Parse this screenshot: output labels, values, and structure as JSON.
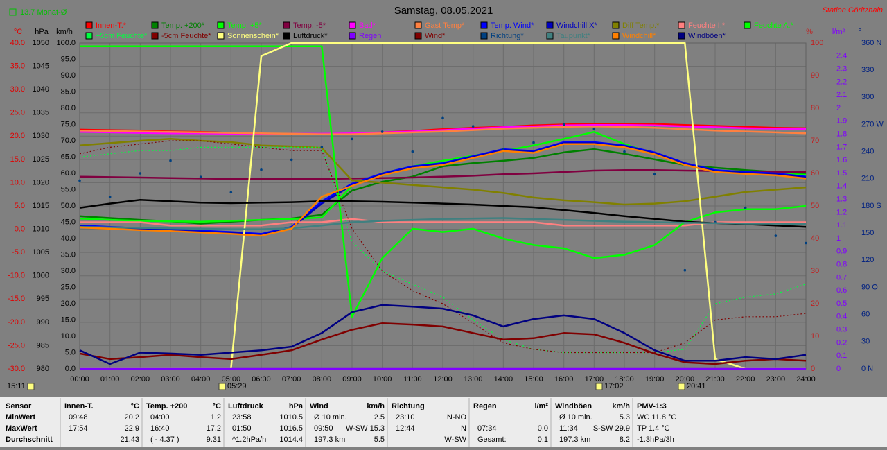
{
  "chart_data": {
    "type": "line",
    "title": "Samstag, 08.05.2021",
    "station": "Station Göritzhain",
    "month_avg": "13.7 Monat-Ø",
    "axis_units": {
      "y": "°C",
      "y2": "hPa",
      "y3": "km/h",
      "y4": "%",
      "y5": "l/m²",
      "y6": "°"
    },
    "markers": [
      "15:11",
      "05:29",
      "17:02",
      "20:41"
    ],
    "x": [
      0,
      1,
      2,
      3,
      4,
      5,
      6,
      7,
      8,
      9,
      10,
      11,
      12,
      13,
      14,
      15,
      16,
      17,
      18,
      19,
      20,
      21,
      22,
      23,
      24
    ],
    "xlim": [
      0,
      24
    ],
    "xticks": [
      {
        "value": 0,
        "label": "00:00"
      },
      {
        "value": 1,
        "label": "01:00"
      },
      {
        "value": 2,
        "label": "02:00"
      },
      {
        "value": 3,
        "label": "03:00"
      },
      {
        "value": 4,
        "label": "04:00"
      },
      {
        "value": 5,
        "label": "05:00"
      },
      {
        "value": 6,
        "label": "06:00"
      },
      {
        "value": 7,
        "label": "07:00"
      },
      {
        "value": 8,
        "label": "08:00"
      },
      {
        "value": 9,
        "label": "09:00"
      },
      {
        "value": 10,
        "label": "10:00"
      },
      {
        "value": 11,
        "label": "11:00"
      },
      {
        "value": 12,
        "label": "12:00"
      },
      {
        "value": 13,
        "label": "13:00"
      },
      {
        "value": 14,
        "label": "14:00"
      },
      {
        "value": 15,
        "label": "15:00"
      },
      {
        "value": 16,
        "label": "16:00"
      },
      {
        "value": 17,
        "label": "17:00"
      },
      {
        "value": 18,
        "label": "18:00"
      },
      {
        "value": 19,
        "label": "19:00"
      },
      {
        "value": 20,
        "label": "20:00"
      },
      {
        "value": 21,
        "label": "21:00"
      },
      {
        "value": 22,
        "label": "22:00"
      },
      {
        "value": 23,
        "label": "23:00"
      },
      {
        "value": 24,
        "label": "24:00"
      }
    ],
    "ylim": [
      -30,
      40
    ],
    "yticks": [
      {
        "value": 40,
        "label": "40.0"
      },
      {
        "value": 35,
        "label": "35.0"
      },
      {
        "value": 30,
        "label": "30.0"
      },
      {
        "value": 25,
        "label": "25.0"
      },
      {
        "value": 20,
        "label": "20.0"
      },
      {
        "value": 15,
        "label": "15.0"
      },
      {
        "value": 10,
        "label": "10.0"
      },
      {
        "value": 5,
        "label": "5.0"
      },
      {
        "value": 0,
        "label": "0.0"
      },
      {
        "value": -5,
        "label": "-5.0"
      },
      {
        "value": -10,
        "label": "-10.0"
      },
      {
        "value": -15,
        "label": "-15.0"
      },
      {
        "value": -20,
        "label": "-20.0"
      },
      {
        "value": -25,
        "label": "-25.0"
      },
      {
        "value": -30,
        "label": "-30.0"
      }
    ],
    "y2lim": [
      980,
      1050
    ],
    "y2ticks": [
      1050,
      1045,
      1040,
      1035,
      1030,
      1025,
      1020,
      1015,
      1010,
      1005,
      1000,
      995,
      990,
      985,
      980
    ],
    "y3lim": [
      0,
      100
    ],
    "y3ticks": [
      {
        "value": 100,
        "label": "100.0"
      },
      {
        "value": 95,
        "label": "95.0"
      },
      {
        "value": 90,
        "label": "90.0"
      },
      {
        "value": 85,
        "label": "85.0"
      },
      {
        "value": 80,
        "label": "80.0"
      },
      {
        "value": 75,
        "label": "75.0"
      },
      {
        "value": 70,
        "label": "70.0"
      },
      {
        "value": 65,
        "label": "65.0"
      },
      {
        "value": 60,
        "label": "60.0"
      },
      {
        "value": 55,
        "label": "55.0"
      },
      {
        "value": 50,
        "label": "50.0"
      },
      {
        "value": 45,
        "label": "45.0"
      },
      {
        "value": 40,
        "label": "40.0"
      },
      {
        "value": 35,
        "label": "35.0"
      },
      {
        "value": 30,
        "label": "30.0"
      },
      {
        "value": 25,
        "label": "25.0"
      },
      {
        "value": 20,
        "label": "20.0"
      },
      {
        "value": 15,
        "label": "15.0"
      },
      {
        "value": 10,
        "label": "10.0"
      },
      {
        "value": 5,
        "label": "5.0"
      },
      {
        "value": 0,
        "label": "0.0"
      }
    ],
    "y4lim": [
      0,
      100
    ],
    "y4ticks": [
      100,
      90,
      80,
      70,
      60,
      50,
      40,
      30,
      20,
      10,
      0
    ],
    "y5lim": [
      0,
      2.5
    ],
    "y5ticks": [
      0,
      0.1,
      0.2,
      0.3,
      0.4,
      0.5,
      0.6,
      0.7,
      0.8,
      0.9,
      1.0,
      1.1,
      1.2,
      1.3,
      1.4,
      1.5,
      1.6,
      1.7,
      1.8,
      1.9,
      2.0,
      2.1,
      2.2,
      2.3,
      2.4
    ],
    "y6lim": [
      0,
      360
    ],
    "y6ticks": [
      {
        "value": 360,
        "label": "360 N"
      },
      330,
      300,
      {
        "value": 270,
        "label": "270 W"
      },
      240,
      210,
      {
        "value": 180,
        "label": "180 S"
      },
      150,
      120,
      {
        "value": 90,
        "label": "90 O"
      },
      60,
      30,
      {
        "value": 0,
        "label": "0 N"
      }
    ],
    "grid": true,
    "series": [
      {
        "name": "Innen-T.*",
        "color": "#ff0000",
        "axis": "y",
        "values": [
          21.4,
          21.3,
          21.2,
          21.0,
          20.9,
          20.7,
          20.5,
          20.4,
          20.4,
          20.5,
          20.8,
          21.1,
          21.5,
          21.8,
          22.0,
          22.3,
          22.5,
          22.7,
          22.7,
          22.6,
          22.4,
          22.2,
          22.0,
          21.8,
          21.7
        ]
      },
      {
        "name": "Temp. +200*",
        "color": "#008000",
        "axis": "y",
        "values": [
          2.8,
          2.4,
          2.0,
          1.7,
          1.2,
          1.6,
          2.0,
          2.3,
          3.1,
          8.3,
          10.2,
          11.3,
          13.5,
          14.2,
          14.7,
          15.3,
          16.5,
          17.2,
          16.2,
          15.0,
          13.8,
          13.2,
          12.7,
          12.3,
          12.0
        ]
      },
      {
        "name": "Temp. +5*",
        "color": "#00ff00",
        "axis": "y",
        "values": [
          2.3,
          2.0,
          1.8,
          1.7,
          1.6,
          1.8,
          2.0,
          2.2,
          2.5,
          9.3,
          12.0,
          13.5,
          14.7,
          15.8,
          16.8,
          18.0,
          19.4,
          20.9,
          18.3,
          16.2,
          13.8,
          12.7,
          12.2,
          11.9,
          11.7
        ]
      },
      {
        "name": "Temp. -5*",
        "color": "#800040",
        "axis": "y",
        "values": [
          11.3,
          11.2,
          11.1,
          11.0,
          10.9,
          10.8,
          10.8,
          10.8,
          10.8,
          10.9,
          11.0,
          11.1,
          11.3,
          11.5,
          11.8,
          12.0,
          12.3,
          12.6,
          12.7,
          12.7,
          12.6,
          12.5,
          12.4,
          12.3,
          12.3
        ]
      },
      {
        "name": "Bad*",
        "color": "#ff00ff",
        "axis": "y",
        "values": [
          20.9,
          20.8,
          20.7,
          20.6,
          20.6,
          20.5,
          20.5,
          20.5,
          20.5,
          20.6,
          20.8,
          21.0,
          21.3,
          21.6,
          21.9,
          22.1,
          22.3,
          22.4,
          22.4,
          22.3,
          22.1,
          21.9,
          21.7,
          21.6,
          21.5
        ]
      },
      {
        "name": "Gast Temp*",
        "color": "#ff8040",
        "axis": "y",
        "values": [
          21.2,
          21.1,
          21.0,
          20.9,
          20.8,
          20.7,
          20.6,
          20.5,
          20.4,
          20.4,
          20.6,
          20.8,
          21.0,
          21.3,
          21.6,
          21.8,
          22.0,
          22.1,
          22.0,
          21.8,
          21.5,
          21.2,
          21.0,
          20.8,
          20.6
        ]
      },
      {
        "name": "Temp. Wind*",
        "color": "#0000ff",
        "axis": "y",
        "values": [
          0.8,
          0.5,
          0.2,
          0.0,
          -0.3,
          -0.6,
          -1.0,
          0.5,
          6.0,
          9.8,
          12.0,
          13.5,
          14.2,
          15.7,
          17.2,
          16.8,
          18.7,
          18.7,
          18.0,
          16.5,
          14.2,
          12.7,
          12.3,
          12.0,
          11.3
        ]
      },
      {
        "name": "Windchill X*",
        "color": "#0000c0",
        "axis": "y",
        "values": [
          0.6,
          0.3,
          0.0,
          -0.2,
          -0.5,
          -0.8,
          -1.2,
          0.3,
          5.5,
          9.5,
          11.8,
          13.3,
          14.0,
          15.5,
          17.0,
          16.6,
          18.5,
          18.5,
          17.8,
          16.3,
          14.0,
          12.5,
          12.1,
          11.8,
          11.1
        ]
      },
      {
        "name": "Diff Temp.*",
        "color": "#808000",
        "axis": "y",
        "values": [
          18.0,
          18.5,
          19.0,
          19.4,
          19.0,
          18.7,
          18.0,
          17.8,
          17.5,
          10.5,
          10.0,
          9.5,
          9.0,
          8.5,
          7.8,
          6.8,
          6.2,
          5.8,
          5.3,
          5.5,
          6.0,
          7.0,
          8.0,
          8.5,
          9.0
        ]
      },
      {
        "name": "Feuchte I.*",
        "color": "#ff8080",
        "axis": "y4",
        "values": [
          45,
          45,
          45,
          44,
          44,
          44,
          44,
          45,
          45,
          46,
          45,
          45,
          45,
          45,
          45,
          45,
          44,
          44,
          44,
          44,
          44,
          45,
          45,
          45,
          45
        ]
      },
      {
        "name": "Feuchte A.*",
        "color": "#00ff00",
        "axis": "y4",
        "values": [
          99,
          99,
          99,
          99,
          99,
          99,
          99,
          99,
          99,
          16,
          34,
          43,
          42,
          43,
          40,
          38,
          37,
          34,
          35,
          38,
          45,
          48,
          49,
          49,
          50
        ]
      },
      {
        "name": "+5cm Feuchte*",
        "color": "#00ff40",
        "axis": "y4",
        "style": "dotted",
        "values": [
          65,
          66,
          67,
          67,
          68,
          68,
          68,
          68,
          68,
          39,
          30,
          26,
          22,
          15,
          9,
          6,
          5,
          5,
          5,
          5,
          6,
          20,
          22,
          23,
          26
        ]
      },
      {
        "name": "-5cm Feuchte*",
        "color": "#800000",
        "axis": "y4",
        "style": "dotted",
        "values": [
          66,
          68,
          69,
          70,
          70,
          69,
          68,
          67,
          67,
          43,
          30,
          24,
          20,
          14,
          8,
          6,
          5,
          5,
          5,
          5,
          8,
          15,
          16,
          16,
          17
        ]
      },
      {
        "name": "Sonnenschein*",
        "color": "#ffff80",
        "axis": "y4",
        "values": [
          0,
          0,
          0,
          0,
          0,
          0,
          96,
          100,
          100,
          100,
          100,
          100,
          100,
          100,
          100,
          100,
          100,
          100,
          100,
          100,
          100,
          3,
          0,
          0,
          0
        ]
      },
      {
        "name": "Luftdruck*",
        "color": "#000000",
        "axis": "y2",
        "values": [
          1014.6,
          1015.5,
          1016.3,
          1016.0,
          1015.7,
          1015.6,
          1015.7,
          1015.8,
          1016.0,
          1016.0,
          1015.9,
          1015.7,
          1015.5,
          1015.3,
          1015.0,
          1014.7,
          1014.1,
          1013.5,
          1012.8,
          1012.2,
          1011.6,
          1011.3,
          1011.1,
          1010.8,
          1010.5
        ]
      },
      {
        "name": "Regen",
        "color": "#8000ff",
        "axis": "y5",
        "values": [
          0,
          0,
          0,
          0,
          0,
          0,
          0,
          0,
          0,
          0,
          0,
          0,
          0,
          0,
          0,
          0,
          0,
          0,
          0,
          0,
          0,
          0,
          0,
          0,
          0
        ]
      },
      {
        "name": "Wind*",
        "color": "#800000",
        "axis": "y3",
        "values": [
          4.7,
          3.0,
          3.6,
          4.3,
          3.6,
          3.0,
          4.3,
          5.7,
          9.0,
          12.0,
          14.0,
          13.6,
          13.0,
          11.0,
          9.0,
          9.4,
          11.0,
          10.6,
          8.0,
          4.7,
          2.0,
          1.5,
          2.5,
          3.0,
          2.5
        ]
      },
      {
        "name": "Richtung*",
        "color": "#004080",
        "axis": "y6",
        "style": "dots",
        "values": [
          208,
          190,
          216,
          230,
          212,
          195,
          220,
          231,
          245,
          254,
          262,
          240,
          277,
          268,
          243,
          250,
          270,
          265,
          240,
          215,
          109,
          162,
          178,
          147,
          139
        ]
      },
      {
        "name": "Taupunkt*",
        "color": "#408080",
        "axis": "y",
        "values": [
          0.5,
          0.4,
          0.3,
          0.2,
          0.1,
          0.0,
          0.0,
          0.2,
          0.8,
          1.5,
          1.8,
          2.0,
          2.2,
          2.3,
          2.4,
          2.2,
          2.0,
          1.8,
          1.6,
          1.5,
          1.4,
          1.3,
          1.2,
          1.2,
          1.1
        ]
      },
      {
        "name": "Windchill*",
        "color": "#ff8000",
        "axis": "y",
        "values": [
          0.4,
          0.1,
          -0.2,
          -0.4,
          -0.7,
          -1.0,
          -1.4,
          0.1,
          7.0,
          9.3,
          11.6,
          13.1,
          13.8,
          15.3,
          16.8,
          16.4,
          18.3,
          18.3,
          17.6,
          16.1,
          13.8,
          12.3,
          11.9,
          11.6,
          10.9
        ]
      },
      {
        "name": "Windböen*",
        "color": "#000080",
        "axis": "y3",
        "values": [
          5.7,
          1.5,
          5.0,
          4.7,
          4.3,
          5.0,
          5.7,
          6.8,
          11.0,
          17.4,
          19.6,
          19.1,
          18.5,
          16.4,
          13.0,
          15.3,
          16.4,
          15.3,
          11.0,
          5.7,
          2.5,
          2.5,
          3.6,
          3.0,
          4.3
        ]
      }
    ]
  },
  "table": {
    "row_labels": [
      "Sensor",
      "MinWert",
      "MaxWert",
      "Durchschnitt"
    ],
    "groups": [
      {
        "name": "Innen-T.",
        "unit": "°C",
        "rows": [
          [
            "09:48",
            "20.2"
          ],
          [
            "17:54",
            "22.9"
          ],
          [
            null,
            "21.43"
          ]
        ]
      },
      {
        "name": "Temp. +200",
        "unit": "°C",
        "rows": [
          [
            "04:00",
            "1.2"
          ],
          [
            "16:40",
            "17.2"
          ],
          [
            "( - 4.37 )",
            "9.31"
          ]
        ]
      },
      {
        "name": "Luftdruck",
        "unit": "hPa",
        "rows": [
          [
            "23:58",
            "1010.5"
          ],
          [
            "01:50",
            "1016.5"
          ],
          [
            "^1.2hPa/h",
            "1014.4"
          ]
        ]
      },
      {
        "name": "Wind",
        "unit": "km/h",
        "rows": [
          [
            "Ø 10 min.",
            "2.5"
          ],
          [
            "09:50",
            "W-SW 15.3"
          ],
          [
            "197.3 km",
            "5.5"
          ]
        ]
      },
      {
        "name": "Richtung",
        "unit": null,
        "rows": [
          [
            "23:10",
            "N-NO"
          ],
          [
            "12:44",
            "N"
          ],
          [
            null,
            "W-SW"
          ]
        ]
      },
      {
        "name": "Regen",
        "unit": "l/m²",
        "rows": [
          [
            null,
            null
          ],
          [
            "07:34",
            "0.0"
          ],
          [
            "Gesamt:",
            "0.1"
          ]
        ]
      },
      {
        "name": "Windböen",
        "unit": "km/h",
        "rows": [
          [
            "Ø 10 min.",
            "5.3"
          ],
          [
            "11:34",
            "S-SW 29.9"
          ],
          [
            "197.3 km",
            "8.2"
          ]
        ]
      },
      {
        "name": "PMV-1:3",
        "unit": null,
        "rows": [
          [
            "WC 11.8 °C"
          ],
          [
            "TP 1.4 °C"
          ],
          [
            "-1.3hPa/3h"
          ]
        ]
      }
    ]
  }
}
